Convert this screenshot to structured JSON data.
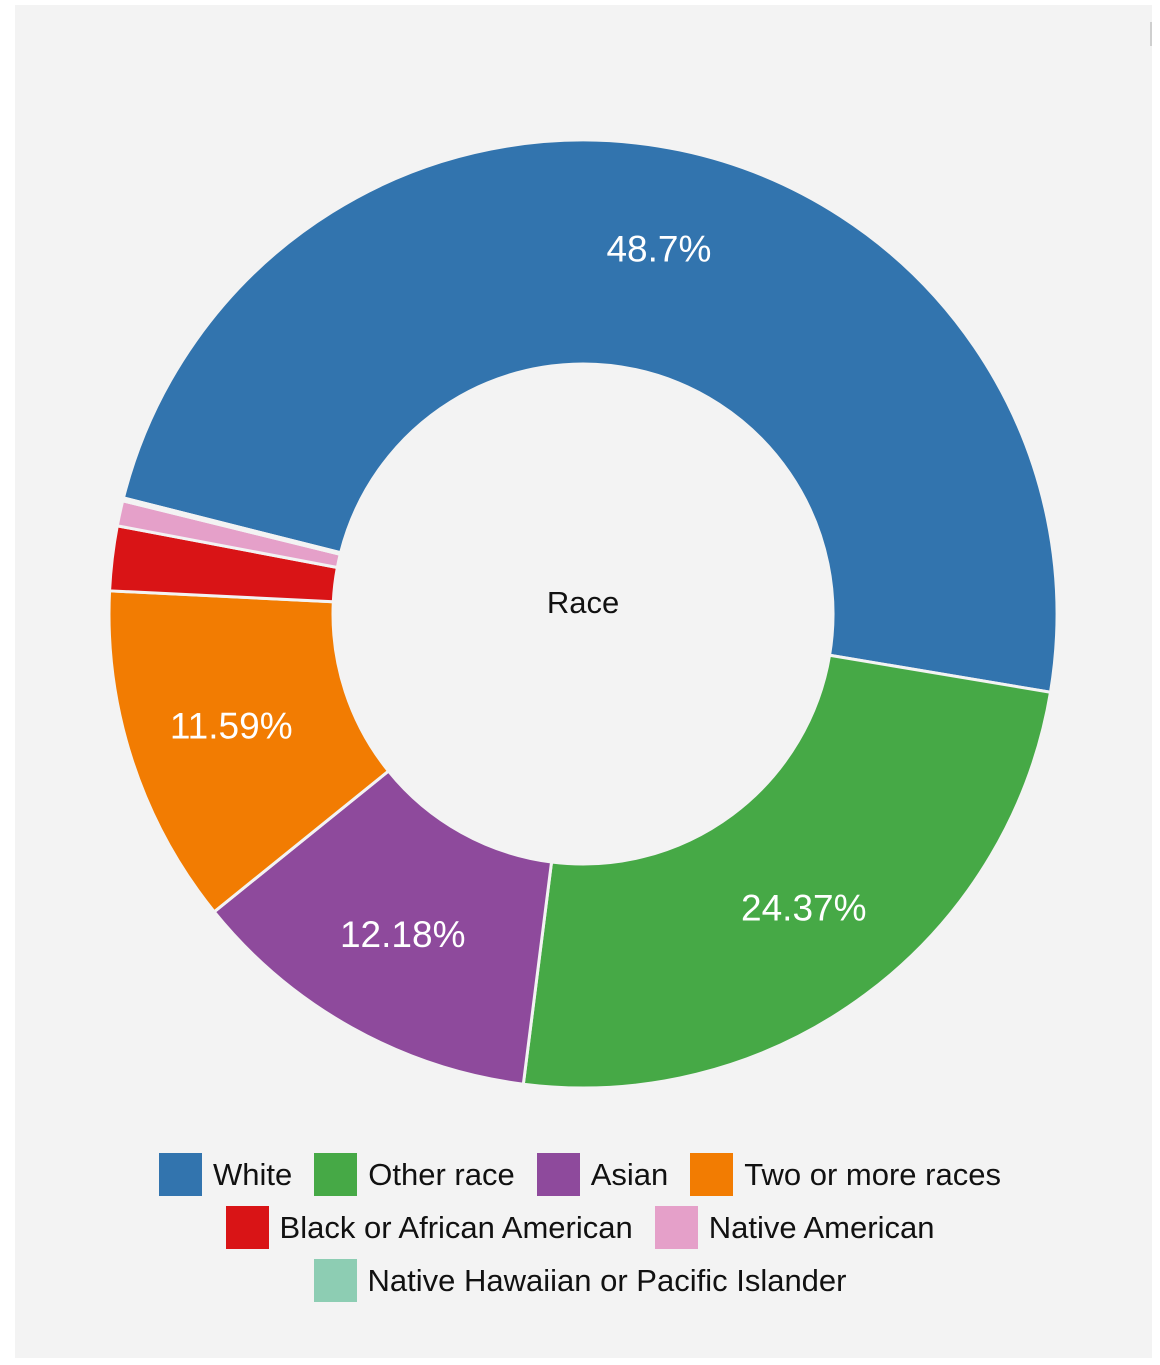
{
  "chart_data": {
    "type": "pie",
    "center_label": "Race",
    "slices": [
      {
        "label": "White",
        "value": 48.7,
        "color": "#3274ae",
        "display": "48.7%"
      },
      {
        "label": "Other race",
        "value": 24.37,
        "color": "#46a946",
        "display": "24.37%"
      },
      {
        "label": "Asian",
        "value": 12.18,
        "color": "#8e4a9c",
        "display": "12.18%"
      },
      {
        "label": "Two or more races",
        "value": 11.59,
        "color": "#f27c02",
        "display": "11.59%"
      },
      {
        "label": "Black or African American",
        "value": 2.2,
        "color": "#d91416",
        "display": ""
      },
      {
        "label": "Native American",
        "value": 0.86,
        "color": "#e5a0c9",
        "display": ""
      },
      {
        "label": "Native Hawaiian or Pacific Islander",
        "value": 0.1,
        "color": "#8dcdb3",
        "display": ""
      }
    ],
    "legend": {
      "position": "bottom",
      "rows": [
        [
          "White",
          "Other race",
          "Asian",
          "Two or more races"
        ],
        [
          "Black or African American",
          "Native American"
        ],
        [
          "Native Hawaiian or Pacific Islander"
        ]
      ]
    }
  }
}
